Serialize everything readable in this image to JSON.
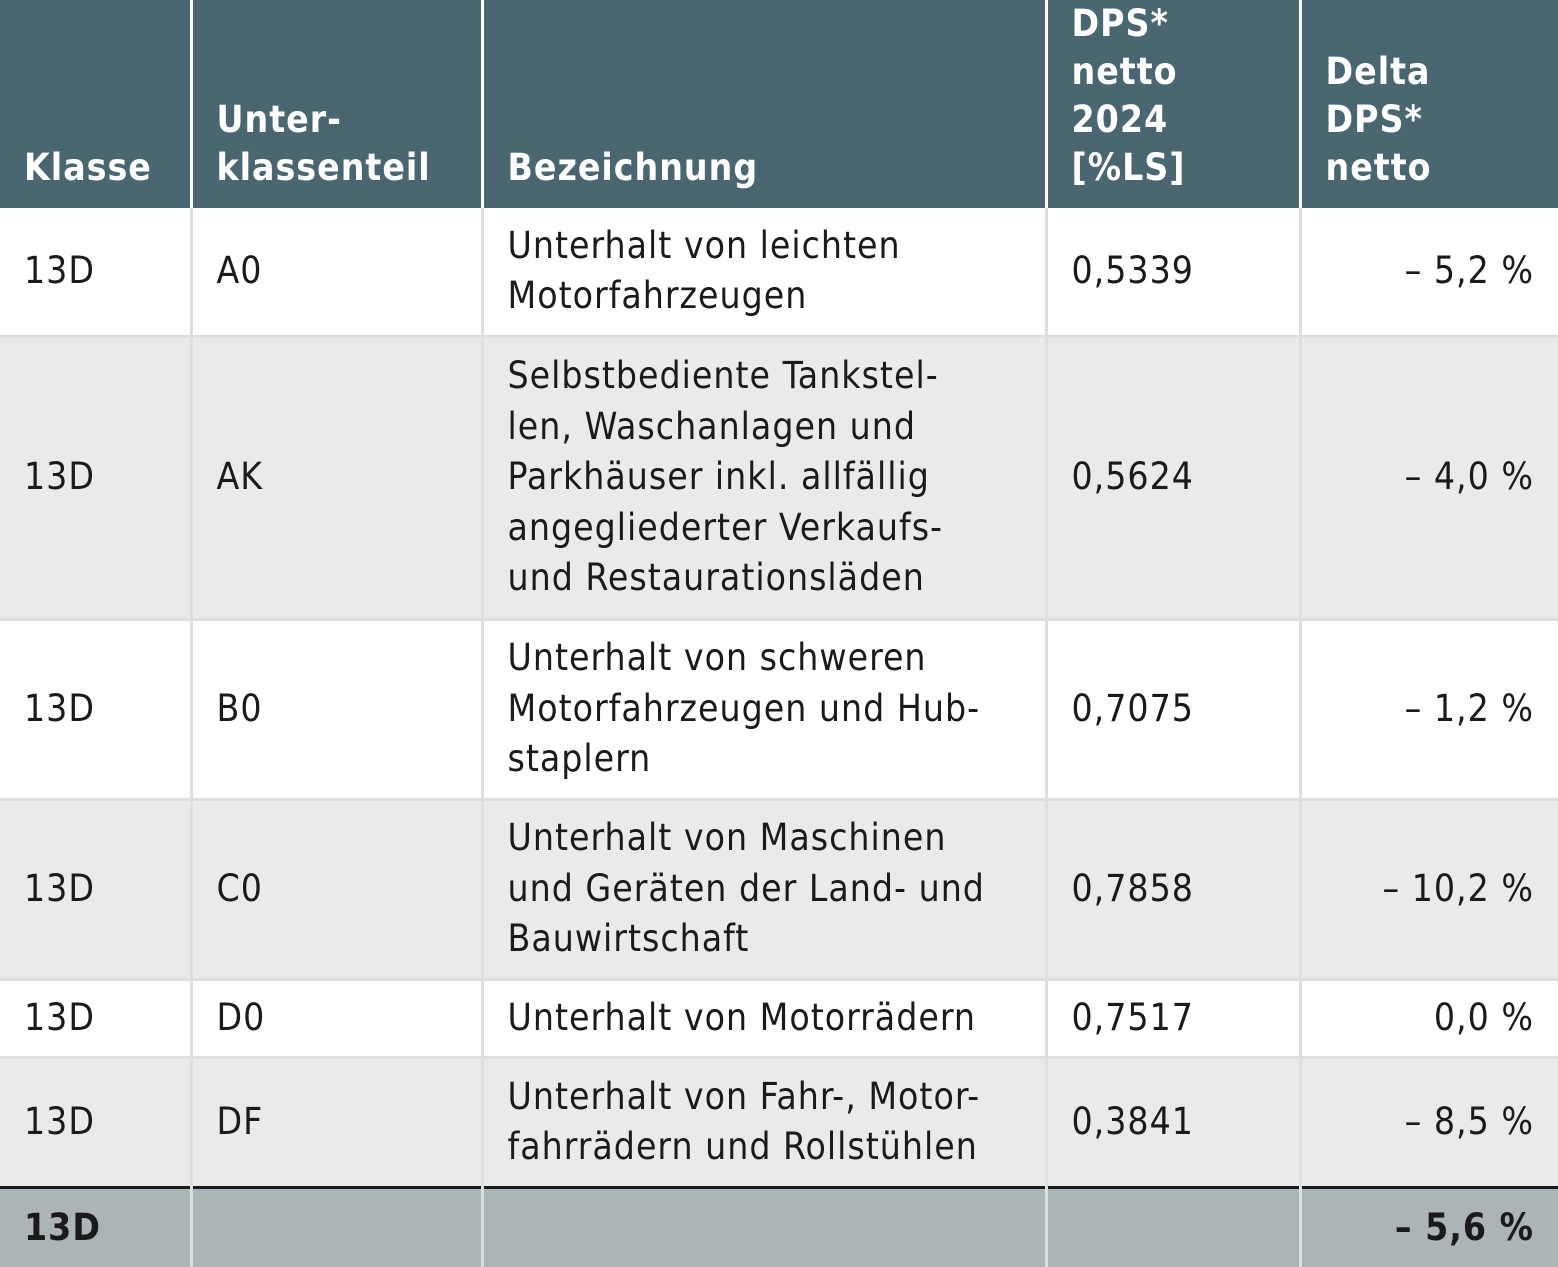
{
  "headers": {
    "klasse": "Klasse",
    "unterklassenteil": "Unter-\nklassenteil",
    "bezeichnung": "Bezeichnung",
    "dps": "DPS* netto\n2024 [%LS]",
    "delta": "Delta\nDPS* netto"
  },
  "rows": [
    {
      "klasse": "13D",
      "ukt": "A0",
      "bezeichnung": "Unterhalt von leichten\nMotorfahrzeugen",
      "dps": "0,5339",
      "delta": "– 5,2 %"
    },
    {
      "klasse": "13D",
      "ukt": "AK",
      "bezeichnung": "Selbstbediente Tankstel-\nlen, Waschanlagen und\nParkhäuser inkl. allfällig\nangegliederter Verkaufs-\nund Restaurationsläden",
      "dps": "0,5624",
      "delta": "– 4,0 %"
    },
    {
      "klasse": "13D",
      "ukt": "B0",
      "bezeichnung": "Unterhalt von schweren\nMotorfahrzeugen und Hub-\nstaplern",
      "dps": "0,7075",
      "delta": "– 1,2 %"
    },
    {
      "klasse": "13D",
      "ukt": "C0",
      "bezeichnung": "Unterhalt von Maschinen\nund Geräten der Land- und\nBauwirtschaft",
      "dps": "0,7858",
      "delta": "– 10,2 %"
    },
    {
      "klasse": "13D",
      "ukt": "D0",
      "bezeichnung": "Unterhalt von Motorrädern",
      "dps": "0,7517",
      "delta": "0,0 %"
    },
    {
      "klasse": "13D",
      "ukt": "DF",
      "bezeichnung": "Unterhalt von Fahr-, Motor-\nfahrrädern und Rollstühlen",
      "dps": "0,3841",
      "delta": "– 8,5 %"
    }
  ],
  "total": {
    "klasse": "13D",
    "delta": "– 5,6 %"
  }
}
